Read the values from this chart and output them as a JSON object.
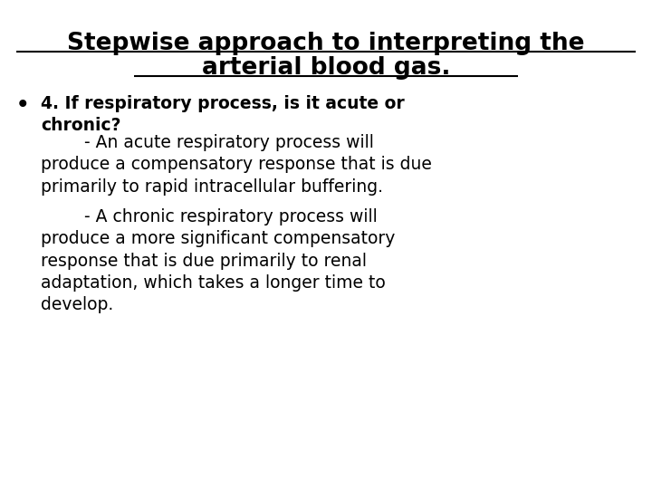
{
  "title_line1": "Stepwise approach to interpreting the",
  "title_line2": "arterial blood gas.",
  "background_color": "#ffffff",
  "text_color": "#000000",
  "title_fontsize": 19,
  "body_fontsize": 13.5,
  "bullet_bold": "4. If respiratory process, is it acute or\nchronic?",
  "body_text1": "        - An acute respiratory process will\nproduce a compensatory response that is due\nprimarily to rapid intracellular buffering.",
  "body_text2": "        - A chronic respiratory process will\nproduce a more significant compensatory\nresponse that is due primarily to renal\nadaptation, which takes a longer time to\ndevelop."
}
